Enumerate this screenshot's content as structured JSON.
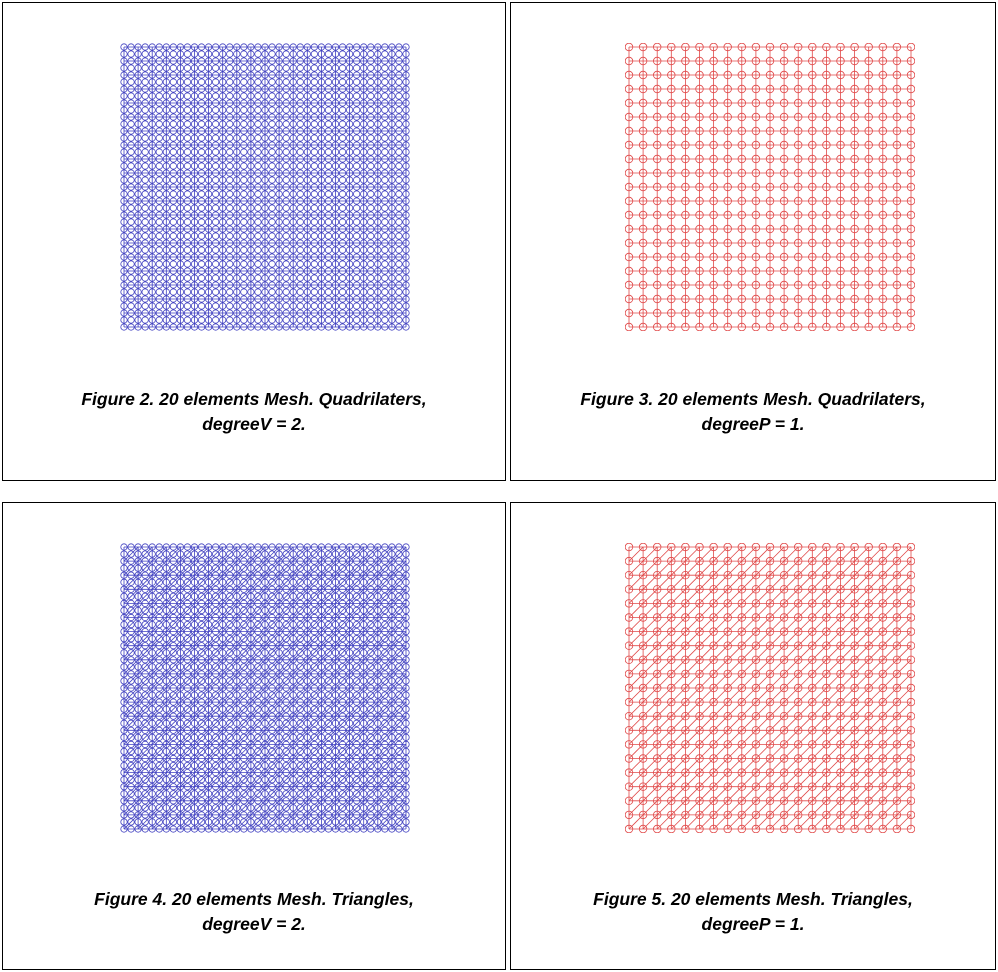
{
  "colors": {
    "velocity": "#4040c0",
    "pressure": "#e04848"
  },
  "panels": [
    {
      "caption_line1": "Figure 2. 20 elements Mesh. Quadrilaters,",
      "caption_line2": "degreeV = 2.",
      "element": "quad",
      "degree": 2,
      "divisions": 20,
      "color": "#4040c0"
    },
    {
      "caption_line1": "Figure 3. 20 elements Mesh. Quadrilaters,",
      "caption_line2": "degreeP = 1.",
      "element": "quad",
      "degree": 1,
      "divisions": 20,
      "color": "#e04848"
    },
    {
      "caption_line1": "Figure 4. 20 elements Mesh. Triangles,",
      "caption_line2": "degreeV = 2.",
      "element": "triangle",
      "degree": 2,
      "divisions": 20,
      "color": "#4040c0"
    },
    {
      "caption_line1": "Figure 5. 20 elements Mesh. Triangles,",
      "caption_line2": "degreeP = 1.",
      "element": "triangle",
      "degree": 1,
      "divisions": 20,
      "color": "#e04848"
    }
  ]
}
